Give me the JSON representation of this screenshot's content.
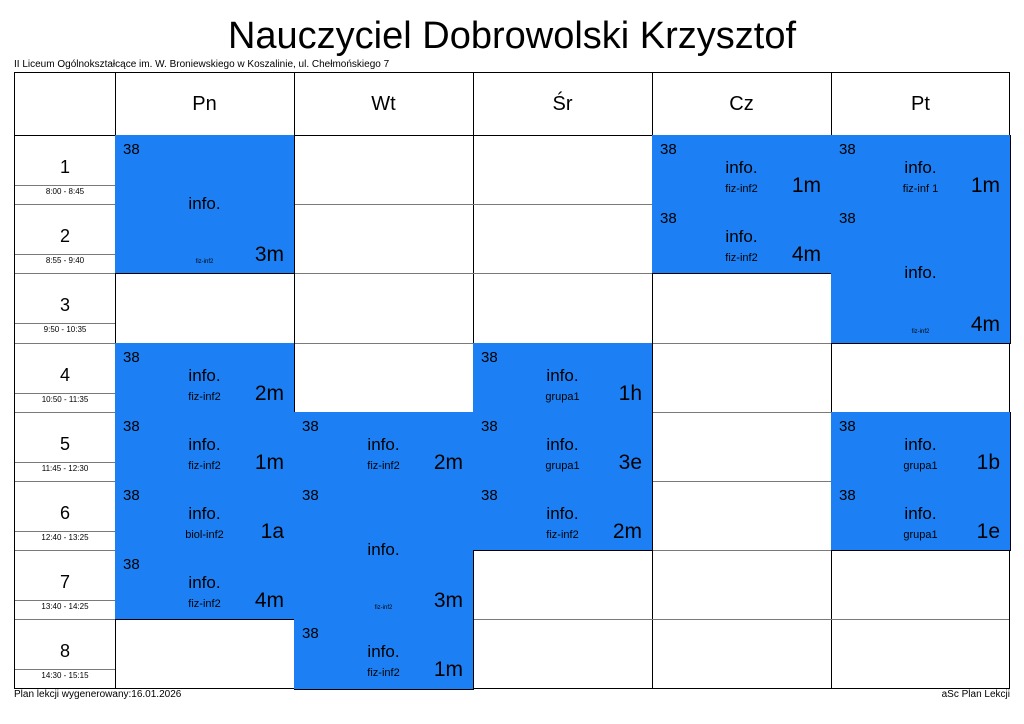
{
  "title": "Nauczyciel Dobrowolski Krzysztof",
  "school": "II Liceum Ogólnokształcące im. W. Broniewskiego w Koszalinie, ul. Chełmońskiego 7",
  "days": [
    "Pn",
    "Wt",
    "Śr",
    "Cz",
    "Pt"
  ],
  "periods": [
    {
      "num": "1",
      "time": "8:00 - 8:45"
    },
    {
      "num": "2",
      "time": "8:55 - 9:40"
    },
    {
      "num": "3",
      "time": "9:50 - 10:35"
    },
    {
      "num": "4",
      "time": "10:50 - 11:35"
    },
    {
      "num": "5",
      "time": "11:45 - 12:30"
    },
    {
      "num": "6",
      "time": "12:40 - 13:25"
    },
    {
      "num": "7",
      "time": "13:40 - 14:25"
    },
    {
      "num": "8",
      "time": "14:30 - 15:15"
    }
  ],
  "lessons": [
    {
      "day": 0,
      "period": 0,
      "span": 2,
      "room": "38",
      "subject": "info.",
      "group": "fiz-inf2",
      "class": "3m"
    },
    {
      "day": 0,
      "period": 3,
      "span": 1,
      "room": "38",
      "subject": "info.",
      "group": "fiz-inf2",
      "class": "2m"
    },
    {
      "day": 0,
      "period": 4,
      "span": 1,
      "room": "38",
      "subject": "info.",
      "group": "fiz-inf2",
      "class": "1m"
    },
    {
      "day": 0,
      "period": 5,
      "span": 1,
      "room": "38",
      "subject": "info.",
      "group": "biol-inf2",
      "class": "1a"
    },
    {
      "day": 0,
      "period": 6,
      "span": 1,
      "room": "38",
      "subject": "info.",
      "group": "fiz-inf2",
      "class": "4m"
    },
    {
      "day": 1,
      "period": 4,
      "span": 1,
      "room": "38",
      "subject": "info.",
      "group": "fiz-inf2",
      "class": "2m"
    },
    {
      "day": 1,
      "period": 5,
      "span": 2,
      "room": "38",
      "subject": "info.",
      "group": "fiz-inf2",
      "class": "3m"
    },
    {
      "day": 1,
      "period": 7,
      "span": 1,
      "room": "38",
      "subject": "info.",
      "group": "fiz-inf2",
      "class": "1m"
    },
    {
      "day": 2,
      "period": 3,
      "span": 1,
      "room": "38",
      "subject": "info.",
      "group": "grupa1",
      "class": "1h"
    },
    {
      "day": 2,
      "period": 4,
      "span": 1,
      "room": "38",
      "subject": "info.",
      "group": "grupa1",
      "class": "3e"
    },
    {
      "day": 2,
      "period": 5,
      "span": 1,
      "room": "38",
      "subject": "info.",
      "group": "fiz-inf2",
      "class": "2m"
    },
    {
      "day": 3,
      "period": 0,
      "span": 1,
      "room": "38",
      "subject": "info.",
      "group": "fiz-inf2",
      "class": "1m"
    },
    {
      "day": 3,
      "period": 1,
      "span": 1,
      "room": "38",
      "subject": "info.",
      "group": "fiz-inf2",
      "class": "4m"
    },
    {
      "day": 4,
      "period": 0,
      "span": 1,
      "room": "38",
      "subject": "info.",
      "group": "fiz-inf 1",
      "class": "1m"
    },
    {
      "day": 4,
      "period": 1,
      "span": 2,
      "room": "38",
      "subject": "info.",
      "group": "fiz-inf2",
      "class": "4m"
    },
    {
      "day": 4,
      "period": 4,
      "span": 1,
      "room": "38",
      "subject": "info.",
      "group": "grupa1",
      "class": "1b"
    },
    {
      "day": 4,
      "period": 5,
      "span": 1,
      "room": "38",
      "subject": "info.",
      "group": "grupa1",
      "class": "1e"
    }
  ],
  "footer": {
    "generated": "Plan lekcji wygenerowany:16.01.2026",
    "app": "aSc Plan Lekcji"
  }
}
